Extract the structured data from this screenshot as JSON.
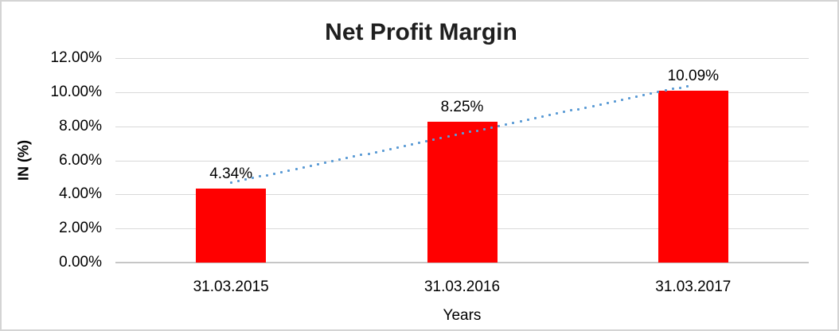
{
  "chart_data": {
    "type": "bar",
    "title": "Net Profit Margin",
    "xlabel": "Years",
    "ylabel": "IN (%)",
    "categories": [
      "31.03.2015",
      "31.03.2016",
      "31.03.2017"
    ],
    "series": [
      {
        "name": "Net Profit Margin",
        "values": [
          4.34,
          8.25,
          10.09
        ],
        "data_labels": [
          "4.34%",
          "8.25%",
          "10.09%"
        ],
        "color": "#FF0000"
      }
    ],
    "ylim": [
      0,
      12
    ],
    "y_ticks": [
      {
        "value": 0,
        "label": "0.00%"
      },
      {
        "value": 2,
        "label": "2.00%"
      },
      {
        "value": 4,
        "label": "4.00%"
      },
      {
        "value": 6,
        "label": "6.00%"
      },
      {
        "value": 8,
        "label": "8.00%"
      },
      {
        "value": 10,
        "label": "10.00%"
      },
      {
        "value": 12,
        "label": "12.00%"
      }
    ],
    "grid": true,
    "legend": "none",
    "colors": {
      "bar": "#FF0000",
      "gridline": "#D9D9D9",
      "axis_line": "#C6C6C6",
      "trendline": "#5B9BD5",
      "title_text": "#1F1F1F",
      "label_text": "#000000",
      "frame_border": "#D4D4D4"
    },
    "trendline": {
      "type": "linear",
      "style": "dotted",
      "color": "#5B9BD5",
      "start_percent": 4.69,
      "end_percent": 10.43
    }
  }
}
